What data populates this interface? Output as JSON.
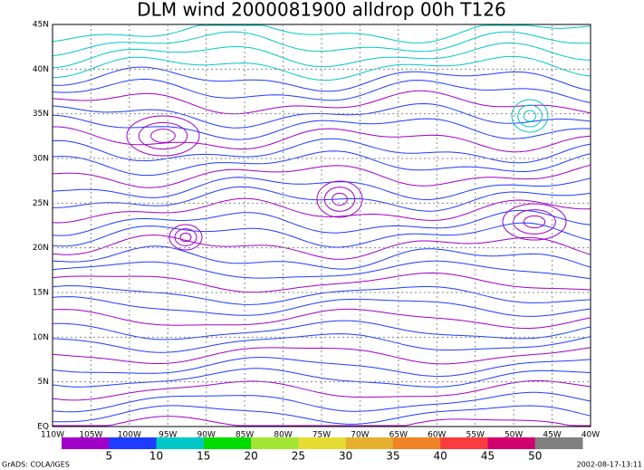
{
  "map": {
    "title": "DLM wind 2000081900 alldrop 00h T126",
    "lat_labels": [
      "EQ",
      "5N",
      "10N",
      "15N",
      "20N",
      "25N",
      "30N",
      "35N",
      "40N",
      "45N"
    ],
    "lon_labels": [
      "110W",
      "105W",
      "100W",
      "95W",
      "90W",
      "85W",
      "80W",
      "75W",
      "70W",
      "65W",
      "60W",
      "55W",
      "50W",
      "45W",
      "40W"
    ],
    "colorbar": {
      "colors": [
        "#a000c8",
        "#1e3cff",
        "#00c8c8",
        "#00dc00",
        "#a0e632",
        "#e6dc32",
        "#e6af2d",
        "#f08228",
        "#fa3c3c",
        "#d2006e",
        "#808080"
      ],
      "labels": [
        "5",
        "10",
        "15",
        "20",
        "25",
        "30",
        "35",
        "40",
        "45",
        "50"
      ]
    },
    "footer_left": "GrADS: COLA/IGES",
    "footer_right": "2002-08-17-13:11"
  }
}
